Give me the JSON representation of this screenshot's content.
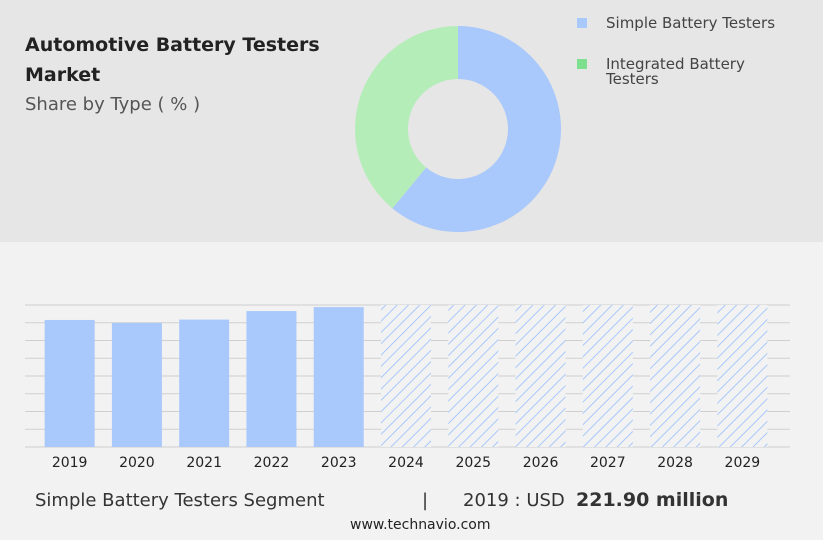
{
  "chart_data": [
    {
      "type": "donut",
      "title": "Automotive Battery Testers Market",
      "subtitle": "Share by Type ( % )",
      "series": [
        {
          "name": "Simple Battery Testers",
          "color": "#a9c8fb",
          "legend_color": "#a9c8fb",
          "value": 61
        },
        {
          "name": "Integrated Battery Testers",
          "color": "#b5edb9",
          "legend_color": "#7ee08f",
          "value": 39
        }
      ]
    },
    {
      "type": "bar",
      "categories": [
        "2019",
        "2020",
        "2021",
        "2022",
        "2023",
        "2024",
        "2025",
        "2026",
        "2027",
        "2028",
        "2029"
      ],
      "values": [
        221.9,
        216.7,
        222.5,
        237.4,
        244.3,
        null,
        null,
        null,
        null,
        null,
        null
      ],
      "color": "#a9c8fb",
      "ylim": [
        0,
        248
      ],
      "yticks": [
        0,
        31,
        62,
        93,
        124,
        155,
        186,
        217,
        248
      ],
      "grid": true
    }
  ],
  "footer": {
    "segment": "Simple Battery Testers Segment",
    "separator": "|",
    "year_label": "2019 : USD",
    "value_label": "221.90 million",
    "source": "www.technavio.com"
  }
}
